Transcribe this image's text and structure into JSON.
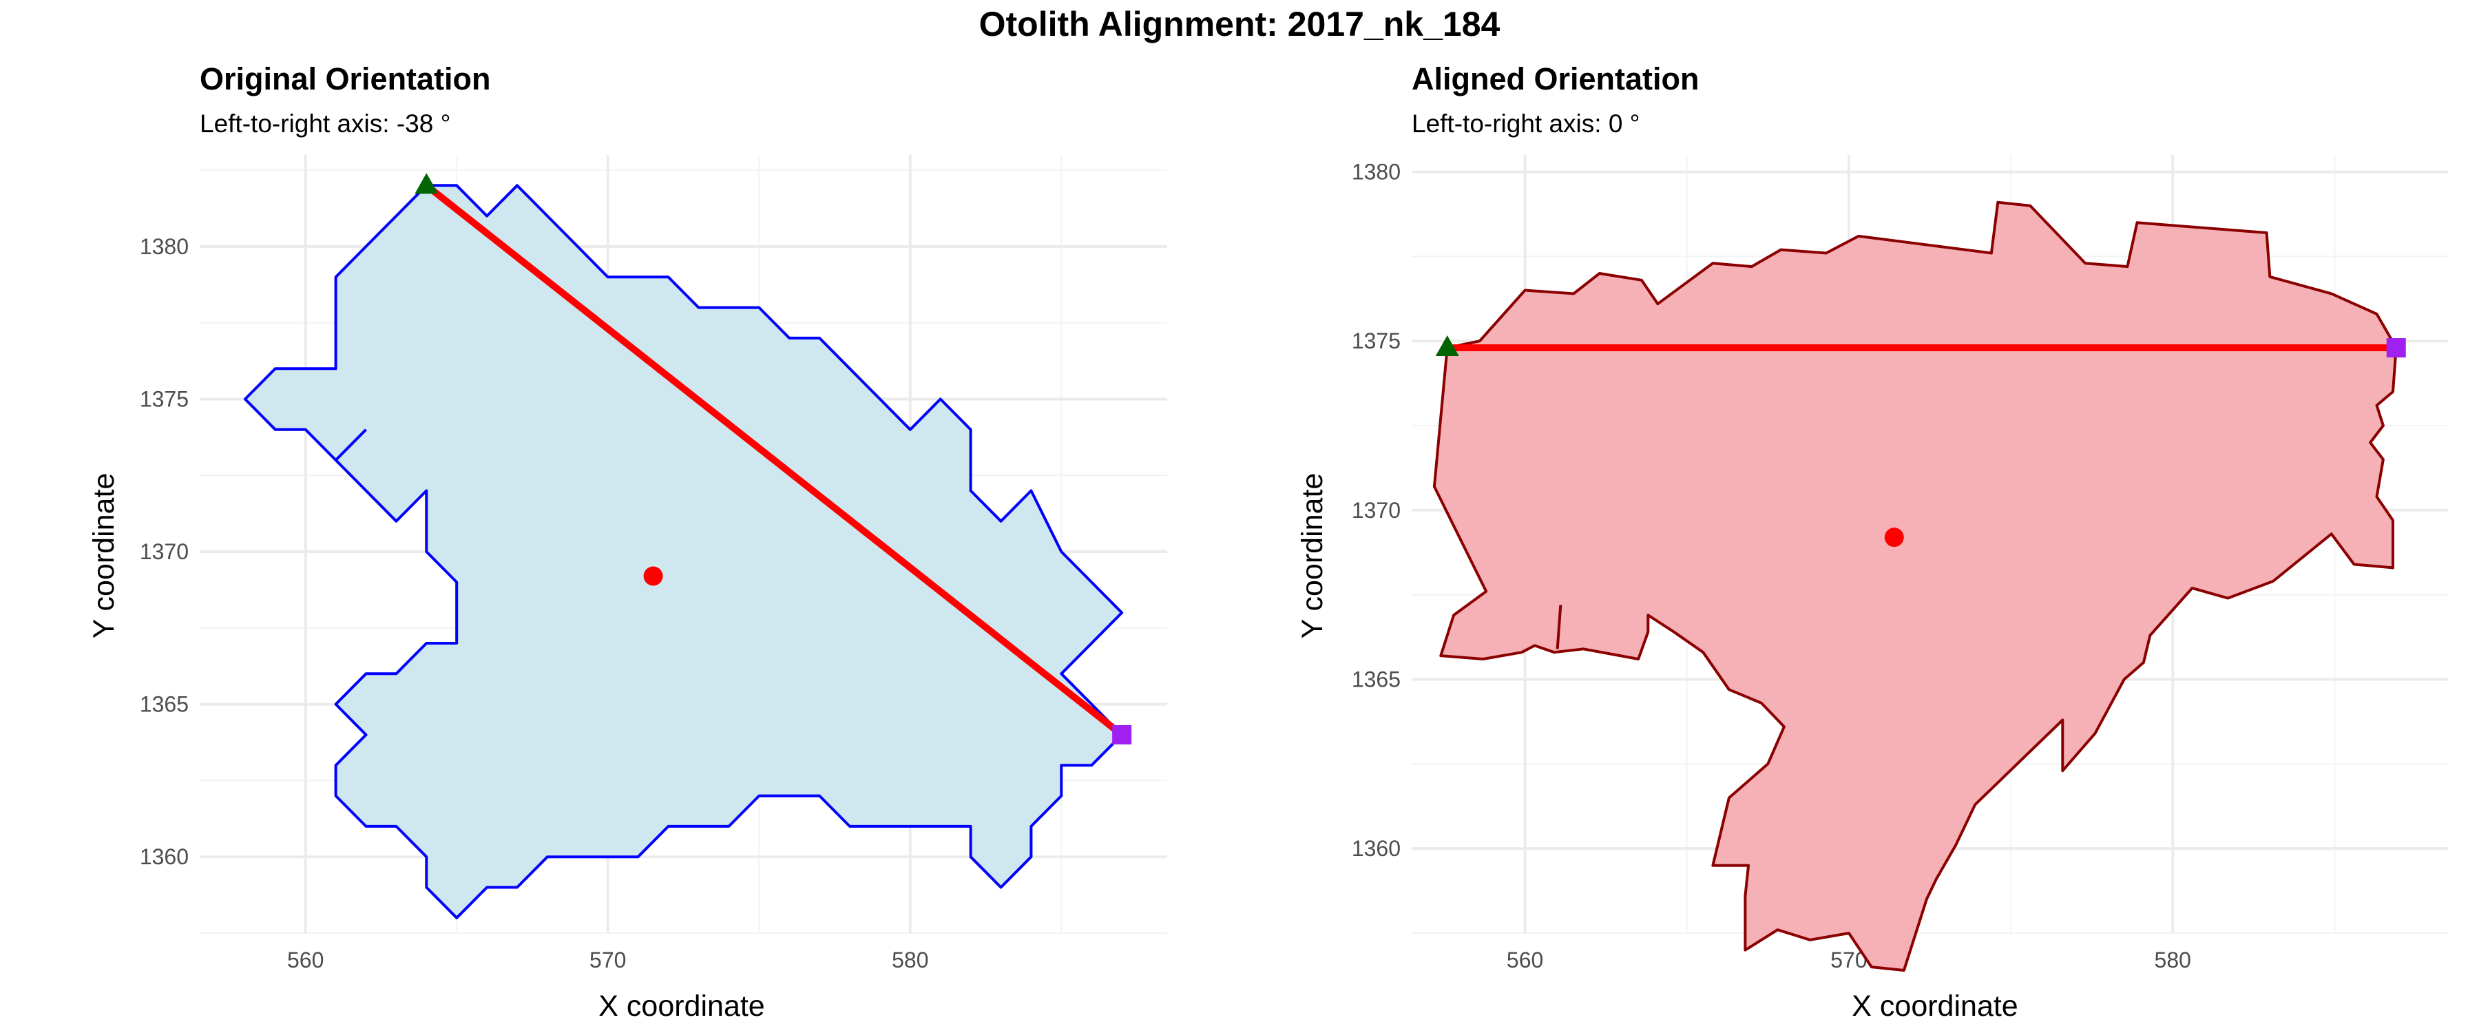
{
  "figure": {
    "title": "Otolith Alignment: 2017_nk_184"
  },
  "chart_data": [
    {
      "type": "polygon",
      "title": "Original Orientation",
      "subtitle": "Left-to-right axis: -38 °",
      "xlabel": "X coordinate",
      "ylabel": "Y coordinate",
      "xlim": [
        556.5,
        588.5
      ],
      "ylim": [
        1357.5,
        1383.0
      ],
      "xticks": [
        560,
        570,
        580
      ],
      "yticks": [
        1360,
        1365,
        1370,
        1375,
        1380
      ],
      "grid": true,
      "colors": {
        "fill": "#cfe8ef",
        "outline": "#0000ff",
        "axis_line": "#ff0000",
        "centroid": "#ff0000",
        "start_marker": "#006400",
        "end_marker": "#a020f0"
      },
      "outline": [
        [
          564,
          1382
        ],
        [
          565,
          1382
        ],
        [
          566,
          1381
        ],
        [
          567,
          1382
        ],
        [
          568,
          1381
        ],
        [
          569,
          1380
        ],
        [
          570,
          1379
        ],
        [
          572,
          1379
        ],
        [
          573,
          1378
        ],
        [
          575,
          1378
        ],
        [
          576,
          1377
        ],
        [
          577,
          1377
        ],
        [
          579,
          1375
        ],
        [
          580,
          1374
        ],
        [
          581,
          1375
        ],
        [
          582,
          1374
        ],
        [
          582,
          1372
        ],
        [
          583,
          1371
        ],
        [
          584,
          1372
        ],
        [
          585,
          1370
        ],
        [
          586,
          1369
        ],
        [
          587,
          1368
        ],
        [
          586,
          1367
        ],
        [
          585,
          1366
        ],
        [
          586,
          1365
        ],
        [
          587,
          1364
        ],
        [
          587,
          1364
        ],
        [
          586,
          1363
        ],
        [
          585,
          1363
        ],
        [
          585,
          1362
        ],
        [
          584,
          1361
        ],
        [
          584,
          1360
        ],
        [
          583,
          1359
        ],
        [
          582,
          1360
        ],
        [
          582,
          1361
        ],
        [
          581,
          1361
        ],
        [
          579,
          1361
        ],
        [
          578,
          1361
        ],
        [
          577,
          1362
        ],
        [
          575,
          1362
        ],
        [
          574,
          1361
        ],
        [
          572,
          1361
        ],
        [
          571,
          1360
        ],
        [
          570,
          1360
        ],
        [
          569,
          1360
        ],
        [
          568,
          1360
        ],
        [
          567,
          1359
        ],
        [
          566,
          1359
        ],
        [
          565,
          1358
        ],
        [
          564,
          1359
        ],
        [
          564,
          1360
        ],
        [
          563,
          1361
        ],
        [
          562,
          1361
        ],
        [
          561,
          1362
        ],
        [
          561,
          1363
        ],
        [
          562,
          1364
        ],
        [
          561,
          1365
        ],
        [
          562,
          1366
        ],
        [
          563,
          1366
        ],
        [
          564,
          1367
        ],
        [
          565,
          1367
        ],
        [
          565,
          1368
        ],
        [
          565,
          1369
        ],
        [
          564,
          1370
        ],
        [
          564,
          1371
        ],
        [
          564,
          1372
        ],
        [
          563,
          1371
        ],
        [
          561,
          1373
        ],
        [
          560,
          1374
        ],
        [
          559,
          1374
        ],
        [
          558,
          1375
        ],
        [
          559,
          1376
        ],
        [
          560,
          1376
        ],
        [
          561,
          1376
        ],
        [
          561,
          1379
        ],
        [
          562,
          1380
        ],
        [
          564,
          1382
        ]
      ],
      "spur": [
        [
          561,
          1373
        ],
        [
          562,
          1374
        ]
      ],
      "axis_line": [
        [
          564,
          1382
        ],
        [
          587,
          1364
        ]
      ],
      "centroid": [
        571.5,
        1369.2
      ],
      "start_point": [
        564,
        1382
      ],
      "end_point": [
        587,
        1364
      ]
    },
    {
      "type": "polygon",
      "title": "Aligned Orientation",
      "subtitle": "Left-to-right axis: 0 °",
      "xlabel": "X coordinate",
      "ylabel": "Y coordinate",
      "xlim": [
        556.5,
        588.5
      ],
      "ylim": [
        1357.5,
        1380.5
      ],
      "xticks": [
        560,
        570,
        580
      ],
      "yticks": [
        1360,
        1365,
        1370,
        1375,
        1380
      ],
      "grid": true,
      "colors": {
        "fill": "#f5b1b5",
        "outline": "#8b0000",
        "axis_line": "#ff0000",
        "centroid": "#ff0000",
        "start_marker": "#006400",
        "end_marker": "#a020f0"
      },
      "outline": [
        [
          557.6,
          1374.8
        ],
        [
          558.6,
          1375.0
        ],
        [
          560.0,
          1376.5
        ],
        [
          561.5,
          1376.4
        ],
        [
          562.3,
          1377.0
        ],
        [
          563.6,
          1376.8
        ],
        [
          564.1,
          1376.1
        ],
        [
          565.8,
          1377.3
        ],
        [
          567.0,
          1377.2
        ],
        [
          567.9,
          1377.7
        ],
        [
          569.3,
          1377.6
        ],
        [
          570.3,
          1378.1
        ],
        [
          574.4,
          1377.6
        ],
        [
          574.6,
          1379.1
        ],
        [
          575.6,
          1379.0
        ],
        [
          577.3,
          1377.3
        ],
        [
          578.6,
          1377.2
        ],
        [
          578.9,
          1378.5
        ],
        [
          582.9,
          1378.2
        ],
        [
          583.0,
          1376.9
        ],
        [
          584.9,
          1376.4
        ],
        [
          586.3,
          1375.8
        ],
        [
          586.9,
          1374.8
        ],
        [
          586.8,
          1373.5
        ],
        [
          586.3,
          1373.1
        ],
        [
          586.5,
          1372.5
        ],
        [
          586.1,
          1372.0
        ],
        [
          586.5,
          1371.5
        ],
        [
          586.3,
          1370.4
        ],
        [
          586.8,
          1369.7
        ],
        [
          586.8,
          1368.3
        ],
        [
          585.6,
          1368.4
        ],
        [
          584.9,
          1369.3
        ],
        [
          583.1,
          1367.9
        ],
        [
          581.7,
          1367.4
        ],
        [
          580.6,
          1367.7
        ],
        [
          579.3,
          1366.3
        ],
        [
          579.1,
          1365.5
        ],
        [
          578.5,
          1365.0
        ],
        [
          577.6,
          1363.4
        ],
        [
          576.6,
          1362.3
        ],
        [
          576.6,
          1363.8
        ],
        [
          573.9,
          1361.3
        ],
        [
          573.3,
          1360.1
        ],
        [
          572.7,
          1359.1
        ],
        [
          572.4,
          1358.5
        ],
        [
          571.7,
          1356.4
        ],
        [
          570.7,
          1356.5
        ],
        [
          570.0,
          1357.5
        ],
        [
          568.8,
          1357.3
        ],
        [
          567.8,
          1357.6
        ],
        [
          566.8,
          1357.0
        ],
        [
          566.8,
          1358.6
        ],
        [
          566.9,
          1359.5
        ],
        [
          565.8,
          1359.5
        ],
        [
          566.0,
          1360.3
        ],
        [
          566.3,
          1361.5
        ],
        [
          567.5,
          1362.5
        ],
        [
          568.0,
          1363.6
        ],
        [
          567.3,
          1364.3
        ],
        [
          566.3,
          1364.7
        ],
        [
          565.5,
          1365.8
        ],
        [
          564.6,
          1366.4
        ],
        [
          563.8,
          1366.9
        ],
        [
          563.8,
          1366.8
        ],
        [
          563.8,
          1366.4
        ],
        [
          563.5,
          1365.6
        ],
        [
          561.8,
          1365.9
        ],
        [
          560.9,
          1365.8
        ],
        [
          560.3,
          1366.0
        ],
        [
          559.9,
          1365.8
        ],
        [
          558.7,
          1365.6
        ],
        [
          557.4,
          1365.7
        ],
        [
          557.8,
          1366.9
        ],
        [
          558.8,
          1367.6
        ],
        [
          557.2,
          1370.7
        ],
        [
          557.6,
          1374.8
        ]
      ],
      "spur": [
        [
          561.1,
          1367.2
        ],
        [
          561.0,
          1365.9
        ]
      ],
      "axis_line": [
        [
          557.6,
          1374.8
        ],
        [
          586.9,
          1374.8
        ]
      ],
      "centroid": [
        571.4,
        1369.2
      ],
      "start_point": [
        557.6,
        1374.8
      ],
      "end_point": [
        586.9,
        1374.8
      ]
    }
  ]
}
